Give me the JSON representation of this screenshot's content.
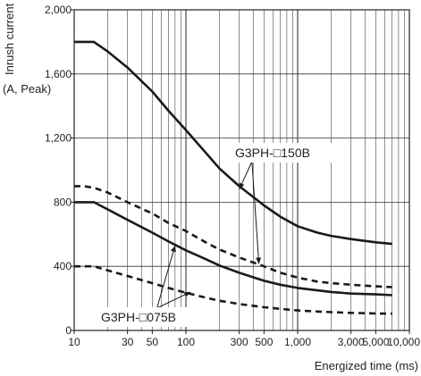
{
  "chart_data": {
    "type": "line",
    "title": "",
    "ylabel": "Inrush current",
    "ylabel_unit": "(A, Peak)",
    "xlabel": "Energized time (ms)",
    "x_scale": "log",
    "xlim": [
      10,
      10000
    ],
    "ylim": [
      0,
      2000
    ],
    "grid": true,
    "x_ticks": [
      10,
      30,
      50,
      100,
      300,
      500,
      1000,
      3000,
      5000,
      10000
    ],
    "x_tick_labels": [
      "10",
      "30",
      "50",
      "100",
      "300",
      "500",
      "1,000",
      "3,000",
      "5,000",
      "10,000"
    ],
    "y_ticks": [
      0,
      400,
      800,
      1200,
      1600,
      2000
    ],
    "y_tick_labels": [
      "0",
      "400",
      "800",
      "1,200",
      "1,600",
      "2,000"
    ],
    "annotations": [
      {
        "text": "G3PH-□150B",
        "series": [
          "solid-upper-150",
          "dashed-upper-150"
        ]
      },
      {
        "text": "G3PH-□075B",
        "series": [
          "solid-lower-075",
          "dashed-lower-075"
        ]
      }
    ],
    "series": [
      {
        "style": "solid",
        "group": "G3PH-□150B",
        "x": [
          10,
          15,
          20,
          30,
          50,
          70,
          100,
          150,
          200,
          300,
          500,
          700,
          1000,
          1500,
          2000,
          3000,
          5000,
          7000
        ],
        "y": [
          1800,
          1800,
          1740,
          1640,
          1490,
          1370,
          1250,
          1110,
          1010,
          900,
          780,
          710,
          650,
          610,
          590,
          570,
          550,
          540
        ]
      },
      {
        "style": "dashed",
        "group": "G3PH-□150B",
        "x": [
          10,
          12,
          15,
          20,
          30,
          50,
          70,
          100,
          150,
          200,
          300,
          500,
          700,
          1000,
          1500,
          2000,
          3000,
          5000,
          7000
        ],
        "y": [
          900,
          900,
          890,
          860,
          800,
          730,
          670,
          620,
          550,
          505,
          455,
          400,
          360,
          330,
          305,
          295,
          285,
          275,
          270
        ]
      },
      {
        "style": "solid",
        "group": "G3PH-□075B",
        "x": [
          10,
          15,
          20,
          30,
          50,
          70,
          100,
          150,
          200,
          300,
          500,
          700,
          1000,
          1500,
          2000,
          3000,
          5000,
          7000
        ],
        "y": [
          800,
          800,
          755,
          690,
          610,
          555,
          500,
          445,
          405,
          360,
          310,
          285,
          265,
          250,
          240,
          230,
          225,
          220
        ]
      },
      {
        "style": "dashed",
        "group": "G3PH-□075B",
        "x": [
          10,
          15,
          20,
          30,
          50,
          70,
          100,
          150,
          200,
          300,
          500,
          700,
          1000,
          1500,
          2000,
          3000,
          5000,
          7000
        ],
        "y": [
          400,
          400,
          375,
          340,
          295,
          265,
          235,
          205,
          185,
          165,
          145,
          135,
          125,
          118,
          114,
          110,
          106,
          105
        ]
      }
    ]
  }
}
